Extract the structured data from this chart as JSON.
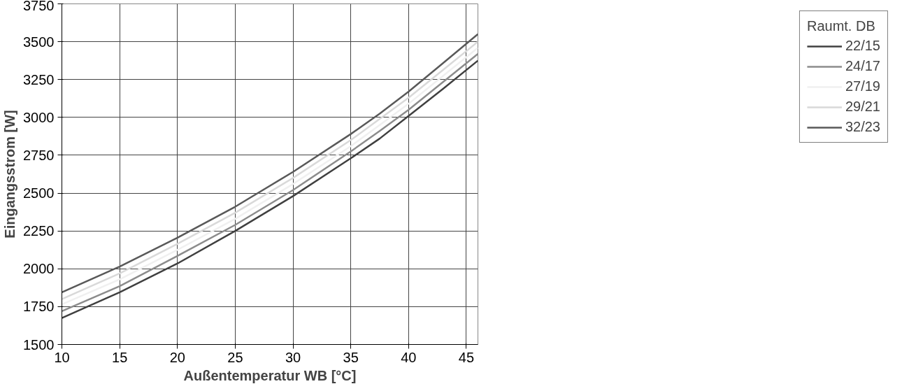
{
  "chart_data": {
    "type": "line",
    "xlabel": "Außentemperatur WB [°C]",
    "ylabel": "Eingangsstrom [W]",
    "legend_title": "Raumt. DB",
    "x": [
      10,
      15,
      20,
      25,
      30,
      35,
      37.5,
      40,
      43,
      46
    ],
    "series": [
      {
        "name": "22/15",
        "color": "#404040",
        "values": [
          1675,
          1845,
          2035,
          2250,
          2480,
          2730,
          2860,
          3010,
          3190,
          3375
        ]
      },
      {
        "name": "24/17",
        "color": "#8c8c8c",
        "values": [
          1720,
          1885,
          2085,
          2290,
          2520,
          2775,
          2910,
          3050,
          3235,
          3420
        ]
      },
      {
        "name": "27/19",
        "color": "#f0f0f0",
        "values": [
          1765,
          1930,
          2125,
          2330,
          2560,
          2810,
          2950,
          3090,
          3275,
          3460
        ]
      },
      {
        "name": "29/21",
        "color": "#d9d9d9",
        "values": [
          1800,
          1970,
          2165,
          2370,
          2600,
          2850,
          2990,
          3130,
          3315,
          3500
        ]
      },
      {
        "name": "32/23",
        "color": "#595959",
        "values": [
          1845,
          2015,
          2205,
          2410,
          2640,
          2890,
          3025,
          3170,
          3360,
          3550
        ]
      }
    ],
    "xlim": [
      10,
      46
    ],
    "ylim": [
      1500,
      3750
    ],
    "xticks": [
      10,
      15,
      20,
      25,
      30,
      35,
      40,
      45
    ],
    "yticks": [
      1500,
      1750,
      2000,
      2250,
      2500,
      2750,
      3000,
      3250,
      3500,
      3750
    ],
    "grid": true,
    "legend": "right",
    "marker": "none",
    "line_style": "solid"
  }
}
